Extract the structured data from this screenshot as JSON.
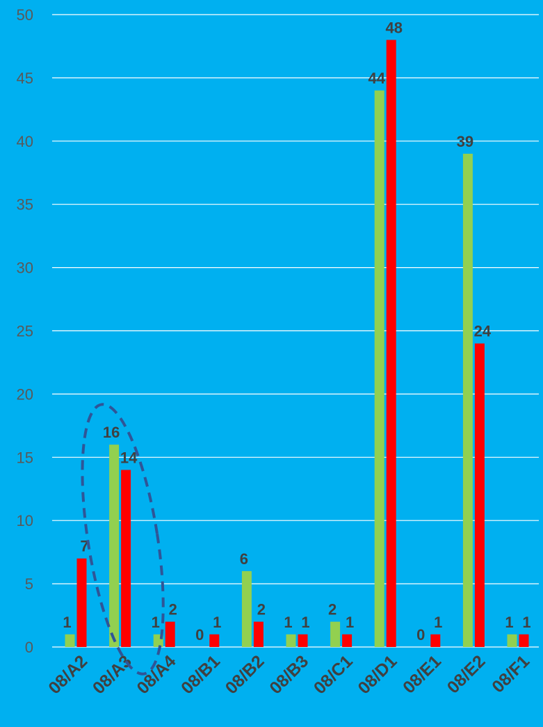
{
  "chart_data": {
    "type": "bar",
    "categories": [
      "08/A2",
      "08/A3",
      "08/A4",
      "08/B1",
      "08/B2",
      "08/B3",
      "08/C1",
      "08/D1",
      "08/E1",
      "08/E2",
      "08/F1"
    ],
    "series": [
      {
        "color": "#92D050",
        "values": [
          1,
          16,
          1,
          0,
          6,
          1,
          2,
          44,
          0,
          39,
          1
        ]
      },
      {
        "color": "#FF0000",
        "values": [
          7,
          14,
          2,
          1,
          2,
          1,
          1,
          48,
          1,
          24,
          1
        ]
      }
    ],
    "y_ticks": [
      "0",
      "5",
      "10",
      "15",
      "20",
      "25",
      "30",
      "35",
      "40",
      "45",
      "50"
    ],
    "ylim": [
      0,
      50
    ],
    "grid": true,
    "legend": "none",
    "highlighted_category": "08/A3",
    "highlight_style": "dashed ellipse",
    "colors": {
      "background": "#00B0F0",
      "grid": "#FFFFFF",
      "highlight": "#2F5597"
    }
  }
}
